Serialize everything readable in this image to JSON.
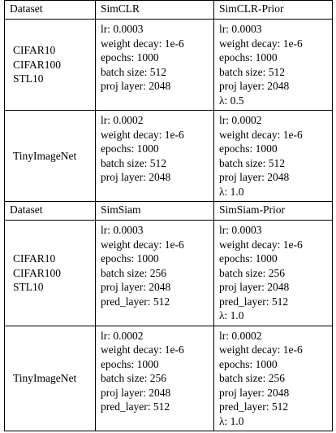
{
  "sections": [
    {
      "headers": [
        "Dataset",
        "SimCLR",
        "SimCLR-Prior"
      ],
      "rows": [
        {
          "datasets": [
            "CIFAR10",
            "CIFAR100",
            "STL10"
          ],
          "left": [
            "lr: 0.0003",
            "weight decay: 1e-6",
            "epochs: 1000",
            "batch size: 512",
            "proj layer: 2048"
          ],
          "right": [
            "lr: 0.0003",
            "weight decay: 1e-6",
            "epochs: 1000",
            "batch size: 512",
            "proj layer: 2048",
            "λ: 0.5"
          ]
        },
        {
          "datasets": [
            "TinyImageNet"
          ],
          "left": [
            "lr: 0.0002",
            "weight decay: 1e-6",
            "epochs: 1000",
            "batch size: 512",
            "proj layer: 2048"
          ],
          "right": [
            "lr: 0.0002",
            "weight decay: 1e-6",
            "epochs: 1000",
            "batch size: 512",
            "proj layer: 2048",
            "λ: 1.0"
          ]
        }
      ]
    },
    {
      "headers": [
        "Dataset",
        "SimSiam",
        "SimSiam-Prior"
      ],
      "rows": [
        {
          "datasets": [
            "CIFAR10",
            "CIFAR100",
            "STL10"
          ],
          "left": [
            "lr: 0.0003",
            "weight decay: 1e-6",
            "epochs: 1000",
            "batch size: 256",
            "proj layer: 2048",
            "pred_layer: 512"
          ],
          "right": [
            "lr: 0.0003",
            "weight decay: 1e-6",
            "epochs: 1000",
            "batch size: 256",
            "proj layer: 2048",
            "pred_layer: 512",
            "λ: 1.0"
          ]
        },
        {
          "datasets": [
            "TinyImageNet"
          ],
          "left": [
            "lr: 0.0002",
            "weight decay: 1e-6",
            "epochs: 1000",
            "batch size: 256",
            "proj layer: 2048",
            "pred_layer: 512"
          ],
          "right": [
            "lr: 0.0002",
            "weight decay: 1e-6",
            "epochs: 1000",
            "batch size: 256",
            "proj layer: 2048",
            "pred_layer: 512",
            "λ: 1.0"
          ]
        }
      ]
    }
  ]
}
